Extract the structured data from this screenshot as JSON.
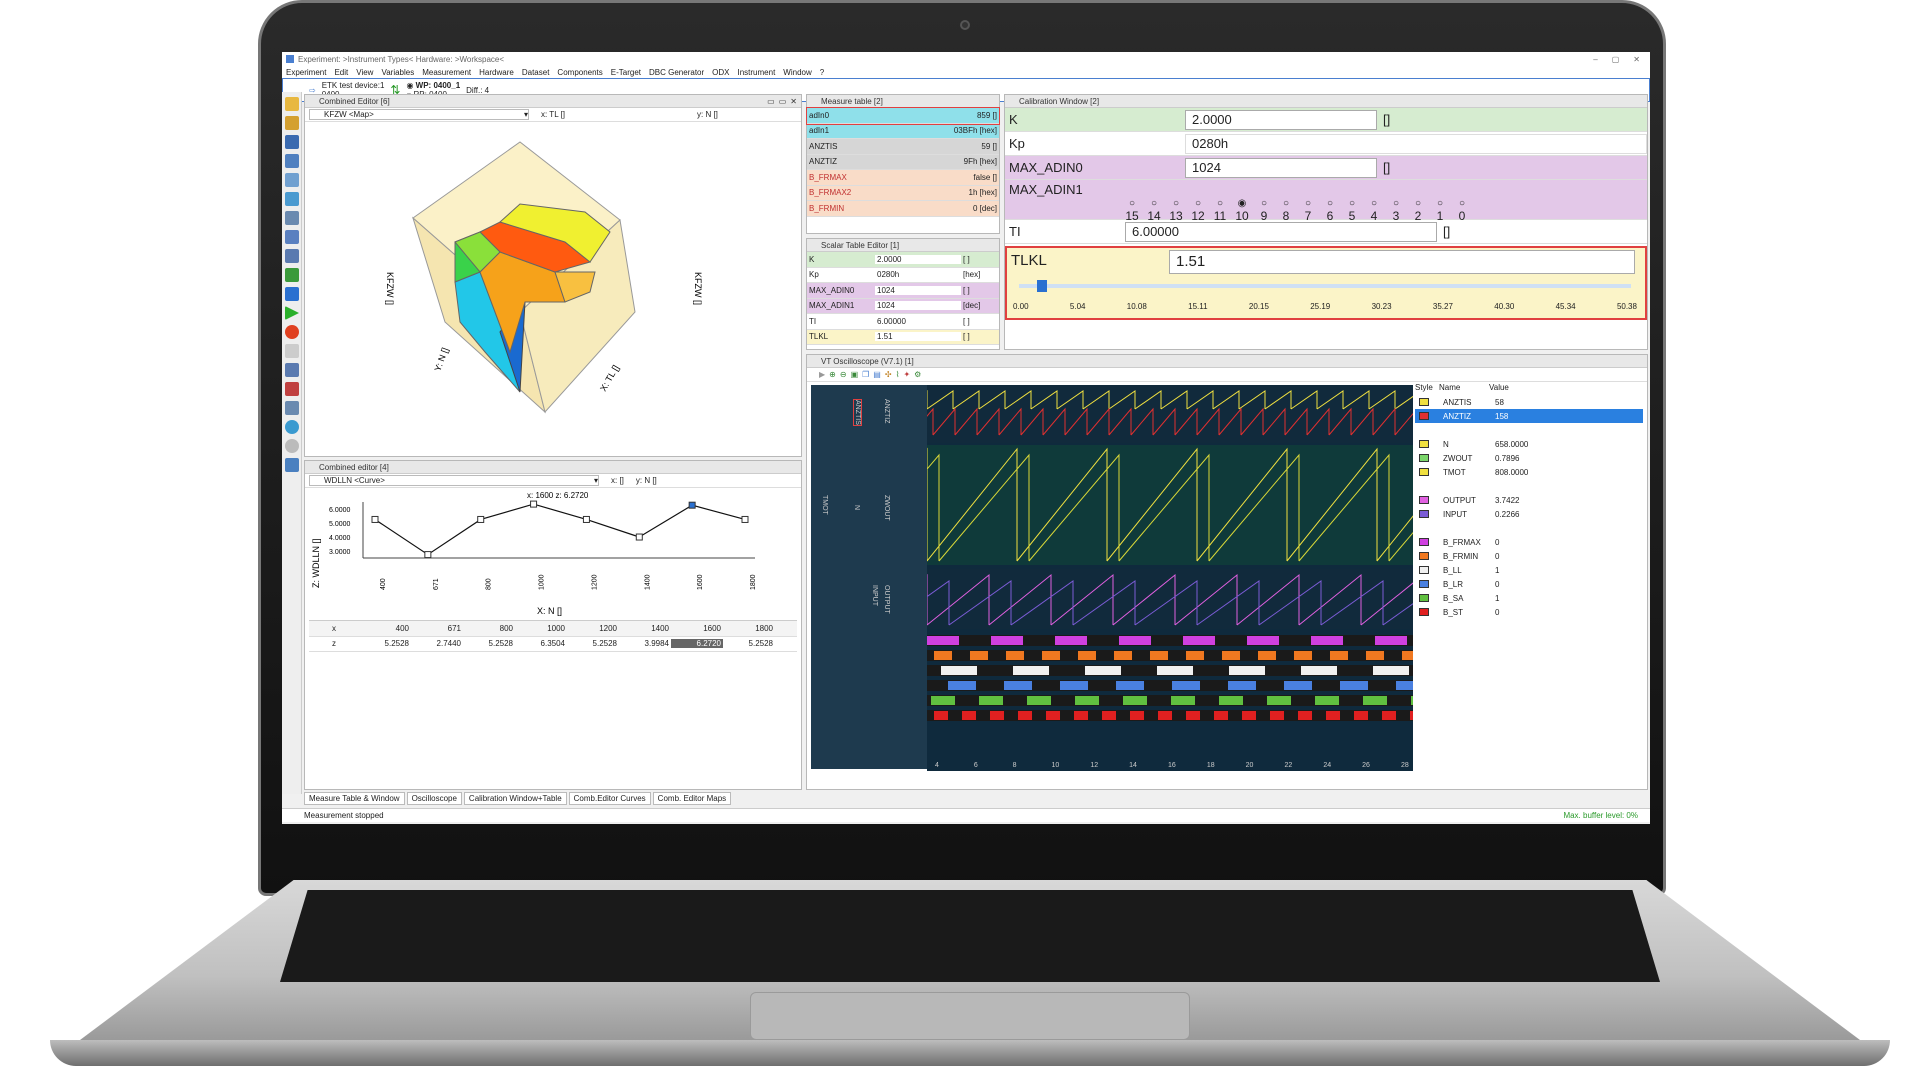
{
  "title": "Experiment: >Instrument Types< Hardware: >Workspace<",
  "menu": [
    "Experiment",
    "Edit",
    "View",
    "Variables",
    "Measurement",
    "Hardware",
    "Dataset",
    "Components",
    "E-Target",
    "DBC Generator",
    "ODX",
    "Instrument",
    "Window",
    "?"
  ],
  "toolbar": {
    "device": "ETK test device:1",
    "device_code": "0400",
    "wp": "WP: 0400_1",
    "rp": "RP: 0400",
    "diff": "Diff.: 4"
  },
  "map_editor": {
    "title": "Combined Editor [6]",
    "variable": "KFZW <Map>",
    "x": "x: TL []",
    "y": "y: N []",
    "zlabel": "KFZW []",
    "xlabel": "X: TL []",
    "ylabel": "Y: N []"
  },
  "measure_table": {
    "title": "Measure table [2]",
    "rows": [
      {
        "name": "adIn0",
        "value": "859 []",
        "color": "#8fe0ea"
      },
      {
        "name": "adIn1",
        "value": "03BFh [hex]",
        "color": "#8fe0ea"
      },
      {
        "name": "ANZTIS",
        "value": "59 []",
        "color": "#d6d6d6"
      },
      {
        "name": "ANZTIZ",
        "value": "9Fh [hex]",
        "color": "#d6d6d6"
      },
      {
        "name": "B_FRMAX",
        "value": "false []",
        "color": "#f9dcc8"
      },
      {
        "name": "B_FRMAX2",
        "value": "1h [hex]",
        "color": "#f9dcc8"
      },
      {
        "name": "B_FRMIN",
        "value": "0 [dec]",
        "color": "#f9dcc8"
      }
    ]
  },
  "scalar_editor": {
    "title": "Scalar Table Editor [1]",
    "rows": [
      {
        "name": "K",
        "value": "2.0000",
        "unit": "[ ]",
        "color": "#d6ecd0"
      },
      {
        "name": "Kp",
        "value": "0280h",
        "unit": "[hex]",
        "color": "#fff"
      },
      {
        "name": "MAX_ADIN0",
        "value": "1024",
        "unit": "[ ]",
        "color": "#e3c8e8"
      },
      {
        "name": "MAX_ADIN1",
        "value": "1024",
        "unit": "[dec]",
        "color": "#e3c8e8"
      },
      {
        "name": "TI",
        "value": "6.00000",
        "unit": "[ ]",
        "color": "#fff"
      },
      {
        "name": "TLKL",
        "value": "1.51",
        "unit": "[ ]",
        "color": "#fbf4c8"
      }
    ]
  },
  "calibration": {
    "title": "Calibration Window [2]",
    "k": {
      "label": "K",
      "value": "2.0000",
      "unit": "[]"
    },
    "kp": {
      "label": "Kp",
      "value": "0280h"
    },
    "max_adin0": {
      "label": "MAX_ADIN0",
      "value": "1024",
      "unit": "[]"
    },
    "max_adin1": {
      "label": "MAX_ADIN1",
      "bits": [
        "15",
        "14",
        "13",
        "12",
        "11",
        "10",
        "9",
        "8",
        "7",
        "6",
        "5",
        "4",
        "3",
        "2",
        "1",
        "0"
      ],
      "selected_bit": "10"
    },
    "ti": {
      "label": "TI",
      "value": "6.00000",
      "unit": "[]"
    },
    "tlkl": {
      "label": "TLKL",
      "value": "1.51",
      "slider_fraction": 0.03,
      "ticks": [
        "0.00",
        "5.04",
        "10.08",
        "15.11",
        "20.15",
        "25.19",
        "30.23",
        "35.27",
        "40.30",
        "45.34",
        "50.38"
      ]
    }
  },
  "curve_editor": {
    "title": "Combined editor [4]",
    "variable": "WDLLN <Curve>",
    "x_label": "x: []",
    "y_label": "y: N []",
    "cursor": "x: 1600 z: 6.2720",
    "zlabel": "Z: WDLLN []",
    "xlabel": "X: N []",
    "table_x": [
      "400",
      "671",
      "800",
      "1000",
      "1200",
      "1400",
      "1600",
      "1800"
    ],
    "table_z": [
      "5.2528",
      "2.7440",
      "5.2528",
      "6.3504",
      "5.2528",
      "3.9984",
      "6.2720",
      "5.2528"
    ],
    "row_x": "x",
    "row_z": "z",
    "yticks": [
      "6.0000",
      "5.0000",
      "4.0000",
      "3.0000"
    ]
  },
  "chart_data": {
    "type": "line",
    "title": "",
    "xlabel": "X: N []",
    "ylabel": "Z: WDLLN []",
    "categories": [
      "400",
      "671",
      "800",
      "1000",
      "1200",
      "1400",
      "1600",
      "1800"
    ],
    "values": [
      5.2528,
      2.744,
      5.2528,
      6.3504,
      5.2528,
      3.9984,
      6.272,
      5.2528
    ],
    "ylim": [
      2.5,
      6.5
    ]
  },
  "scope": {
    "title": "VT Oscilloscope (V7.1) [1]",
    "legend_head": {
      "style": "Style",
      "name": "Name",
      "value": "Value"
    },
    "legend": [
      {
        "name": "ANZTIS",
        "value": "58",
        "color": "#f0e040"
      },
      {
        "name": "ANZTIZ",
        "value": "158",
        "color": "#e03030",
        "selected": true
      },
      {
        "name": "N",
        "value": "658.0000",
        "color": "#f0e040"
      },
      {
        "name": "ZWOUT",
        "value": "0.7896",
        "color": "#7bd66b"
      },
      {
        "name": "TMOT",
        "value": "808.0000",
        "color": "#f0e040"
      },
      {
        "name": "OUTPUT",
        "value": "3.7422",
        "color": "#e060e0"
      },
      {
        "name": "INPUT",
        "value": "0.2266",
        "color": "#7b5cd6"
      },
      {
        "name": "B_FRMAX",
        "value": "0",
        "color": "#d040e0"
      },
      {
        "name": "B_FRMIN",
        "value": "0",
        "color": "#f07820"
      },
      {
        "name": "B_LL",
        "value": "1",
        "color": "#f0f0f0"
      },
      {
        "name": "B_LR",
        "value": "0",
        "color": "#4a80e0"
      },
      {
        "name": "B_SA",
        "value": "1",
        "color": "#60c040"
      },
      {
        "name": "B_ST",
        "value": "0",
        "color": "#e02020"
      }
    ],
    "axis_labels": {
      "a1": "ANZTIS",
      "a2": "ANZTIZ",
      "b1": "TMOT",
      "b2": "N",
      "b3": "ZWOUT",
      "c1": "INPUT",
      "c2": "OUTPUT"
    },
    "xticks": [
      "4",
      "6",
      "8",
      "10",
      "12",
      "14",
      "16",
      "18",
      "20",
      "22",
      "24",
      "26",
      "28"
    ]
  },
  "tabs": [
    "Measure Table & Window",
    "Oscilloscope",
    "Calibration Window+Table",
    "Comb.Editor Curves",
    "Comb. Editor Maps"
  ],
  "status": {
    "left": "Measurement stopped",
    "right": "Max. buffer level: 0%"
  }
}
